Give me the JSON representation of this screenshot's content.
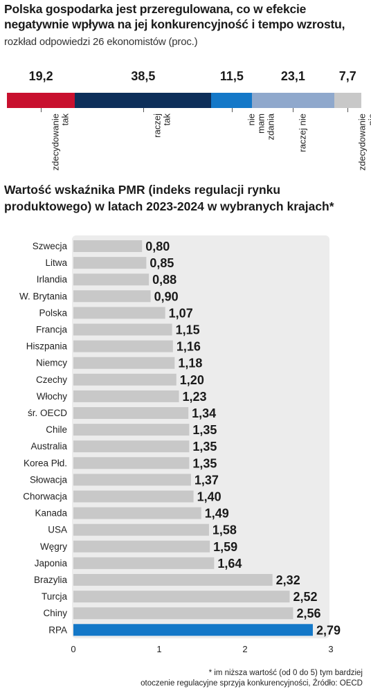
{
  "title1": {
    "bold": "Polska gospodarka jest przeregulowana, co w efekcie negatywnie wpływa na jej konkurencyjność i tempo wzrostu,",
    "normal": " rozkład odpowiedzi 26 ekonomistów (proc.)"
  },
  "title2": "Wartość wskaźnika PMR (indeks regulacji rynku produktowego) w latach 2023-2024 w wybranych krajach*",
  "footnote": {
    "line1": "* im niższa wartość (od 0 do 5) tym bardziej",
    "line2": "otoczenie regulacyjne sprzyja konkurencyjności, Źródło: OECD"
  },
  "chart_data": [
    {
      "type": "bar",
      "orientation": "stacked-horizontal",
      "categories": [
        "zdecydowanie tak",
        "raczej tak",
        "nie mam zdania",
        "raczej nie",
        "zdecydowanie nie"
      ],
      "category_lines": [
        [
          "zdecydowanie",
          "tak"
        ],
        [
          "raczej",
          "tak"
        ],
        [
          "nie",
          "mam",
          "zdania"
        ],
        [
          "raczej nie"
        ],
        [
          "zdecydowanie",
          "nie"
        ]
      ],
      "values": [
        19.2,
        38.5,
        11.5,
        23.1,
        7.7
      ],
      "value_labels": [
        "19,2",
        "38,5",
        "11,5",
        "23,1",
        "7,7"
      ],
      "colors": [
        "#c8102e",
        "#0d2f5a",
        "#1478c8",
        "#8fa8cc",
        "#c8c8c8"
      ]
    },
    {
      "type": "bar",
      "orientation": "horizontal",
      "categories": [
        "Szwecja",
        "Litwa",
        "Irlandia",
        "W. Brytania",
        "Polska",
        "Francja",
        "Hiszpania",
        "Niemcy",
        "Czechy",
        "Włochy",
        "śr. OECD",
        "Chile",
        "Australia",
        "Korea Płd.",
        "Słowacja",
        "Chorwacja",
        "Kanada",
        "USA",
        "Węgry",
        "Japonia",
        "Brazylia",
        "Turcja",
        "Chiny",
        "RPA"
      ],
      "values": [
        0.8,
        0.85,
        0.88,
        0.9,
        1.07,
        1.15,
        1.16,
        1.18,
        1.2,
        1.23,
        1.34,
        1.35,
        1.35,
        1.35,
        1.37,
        1.4,
        1.49,
        1.58,
        1.59,
        1.64,
        2.32,
        2.52,
        2.56,
        2.79
      ],
      "value_labels": [
        "0,80",
        "0,85",
        "0,88",
        "0,90",
        "1,07",
        "1,15",
        "1,16",
        "1,18",
        "1,20",
        "1,23",
        "1,34",
        "1,35",
        "1,35",
        "1,35",
        "1,37",
        "1,40",
        "1,49",
        "1,58",
        "1,59",
        "1,64",
        "2,32",
        "2,52",
        "2,56",
        "2,79"
      ],
      "highlight": "RPA",
      "xlim": [
        0,
        3
      ],
      "xticks": [
        "0",
        "1",
        "2",
        "3"
      ],
      "bar_color": "#c8c8c8",
      "highlight_color": "#1478c8"
    }
  ]
}
